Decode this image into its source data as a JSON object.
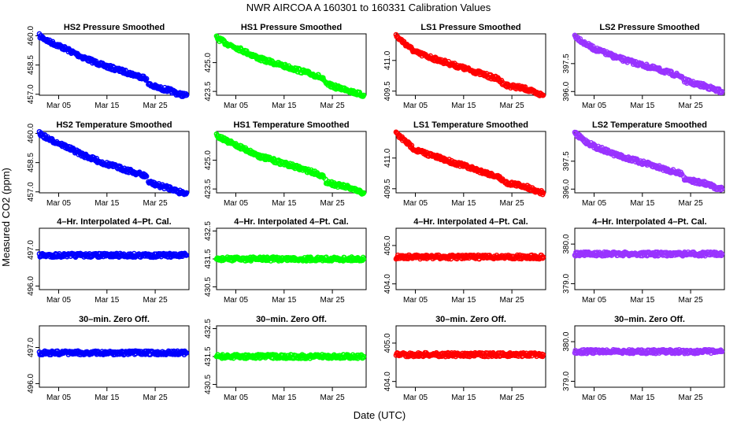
{
  "title": "NWR   AIRCOA A   160301 to 160331   Calibration Values",
  "xlabel": "Date (UTC)",
  "ylabel": "Measured CO2 (ppm)",
  "chart_data": {
    "type": "scatter",
    "rows": 4,
    "cols": 4,
    "x_axis": {
      "ticks": [
        5,
        15,
        25
      ],
      "labels": [
        "Mar 05",
        "Mar 15",
        "Mar 25"
      ],
      "range": [
        1,
        32
      ]
    },
    "panels": [
      {
        "title": "HS2 Pressure Smoothed",
        "color": "#0000ff",
        "ylim": [
          456.95,
          460.1
        ],
        "yticks": [
          457.0,
          458.5,
          460.0
        ],
        "series": [
          {
            "x": [
              1,
              3,
              5,
              10,
              14,
              18,
              22,
              23.2
            ],
            "y": [
              460.0,
              459.7,
              459.5,
              458.9,
              458.5,
              458.2,
              457.9,
              457.8
            ]
          },
          {
            "x": [
              23.6,
              26,
              28,
              30,
              31.5
            ],
            "y": [
              457.5,
              457.3,
              457.2,
              457.0,
              456.95
            ]
          }
        ]
      },
      {
        "title": "HS1 Pressure Smoothed",
        "color": "#00ff00",
        "ylim": [
          423.3,
          426.5
        ],
        "yticks": [
          423.5,
          425.0
        ],
        "series": [
          {
            "x": [
              1,
              3,
              5,
              10,
              14,
              18,
              22,
              23.2
            ],
            "y": [
              426.3,
              426.0,
              425.8,
              425.2,
              424.9,
              424.6,
              424.3,
              424.1
            ]
          },
          {
            "x": [
              23.6,
              26,
              28,
              30,
              31.5
            ],
            "y": [
              423.9,
              423.7,
              423.6,
              423.4,
              423.3
            ]
          }
        ]
      },
      {
        "title": "LS1 Pressure Smoothed",
        "color": "#ff0000",
        "ylim": [
          409.3,
          412.3
        ],
        "yticks": [
          409.5,
          411.0
        ],
        "series": [
          {
            "x": [
              1,
              3,
              5,
              10,
              14,
              18,
              22,
              23.2
            ],
            "y": [
              412.2,
              411.8,
              411.4,
              411.0,
              410.7,
              410.4,
              410.1,
              409.9
            ]
          },
          {
            "x": [
              23.6,
              26,
              28,
              30,
              31.5
            ],
            "y": [
              409.8,
              409.7,
              409.6,
              409.4,
              409.3
            ]
          }
        ]
      },
      {
        "title": "LS2 Pressure Smoothed",
        "color": "#9933ff",
        "ylim": [
          395.8,
          399.1
        ],
        "yticks": [
          396.0,
          397.5
        ],
        "series": [
          {
            "x": [
              1,
              3,
              5,
              10,
              14,
              18,
              22,
              23.2
            ],
            "y": [
              399.0,
              398.6,
              398.3,
              397.8,
              397.5,
              397.2,
              396.9,
              396.8
            ]
          },
          {
            "x": [
              23.6,
              26,
              28,
              30,
              31.5
            ],
            "y": [
              396.6,
              396.4,
              396.3,
              396.1,
              396.0
            ]
          }
        ]
      },
      {
        "title": "HS2 Temperature Smoothed",
        "color": "#0000ff",
        "ylim": [
          456.95,
          460.1
        ],
        "yticks": [
          457.0,
          458.5,
          460.0
        ],
        "series": [
          {
            "x": [
              1,
              3,
              5,
              10,
              14,
              18,
              22,
              23.2
            ],
            "y": [
              460.0,
              459.7,
              459.5,
              458.9,
              458.5,
              458.2,
              457.9,
              457.8
            ]
          },
          {
            "x": [
              23.6,
              26,
              28,
              30,
              31.5
            ],
            "y": [
              457.5,
              457.3,
              457.2,
              457.0,
              456.95
            ]
          }
        ]
      },
      {
        "title": "HS1 Temperature Smoothed",
        "color": "#00ff00",
        "ylim": [
          423.3,
          426.5
        ],
        "yticks": [
          423.5,
          425.0
        ],
        "series": [
          {
            "x": [
              1,
              3,
              5,
              10,
              14,
              18,
              22,
              23.2
            ],
            "y": [
              426.3,
              426.0,
              425.8,
              425.2,
              424.9,
              424.6,
              424.3,
              424.1
            ]
          },
          {
            "x": [
              23.6,
              26,
              28,
              30,
              31.5
            ],
            "y": [
              423.9,
              423.7,
              423.6,
              423.4,
              423.3
            ]
          }
        ]
      },
      {
        "title": "LS1 Temperature Smoothed",
        "color": "#ff0000",
        "ylim": [
          409.3,
          412.3
        ],
        "yticks": [
          409.5,
          411.0
        ],
        "series": [
          {
            "x": [
              1,
              3,
              5,
              10,
              14,
              18,
              22,
              23.2
            ],
            "y": [
              412.2,
              411.8,
              411.4,
              411.0,
              410.7,
              410.4,
              410.1,
              409.9
            ]
          },
          {
            "x": [
              23.6,
              26,
              28,
              30,
              31.5
            ],
            "y": [
              409.8,
              409.7,
              409.6,
              409.4,
              409.3
            ]
          }
        ]
      },
      {
        "title": "LS2 Temperature Smoothed",
        "color": "#9933ff",
        "ylim": [
          395.8,
          399.1
        ],
        "yticks": [
          396.0,
          397.5
        ],
        "series": [
          {
            "x": [
              1,
              3,
              5,
              10,
              14,
              18,
              22,
              23.2
            ],
            "y": [
              399.0,
              398.6,
              398.3,
              397.8,
              397.5,
              397.2,
              396.9,
              396.8
            ]
          },
          {
            "x": [
              23.6,
              26,
              28,
              30,
              31.5
            ],
            "y": [
              396.6,
              396.4,
              396.3,
              396.1,
              396.0
            ]
          }
        ]
      },
      {
        "title": "4–Hr. Interpolated 4–Pt. Cal.",
        "color": "#0000ff",
        "ylim": [
          495.9,
          497.6
        ],
        "yticks": [
          496.0,
          497.0
        ],
        "series": [
          {
            "x": [
              1,
              31.5
            ],
            "y": [
              496.85,
              496.85
            ]
          }
        ]
      },
      {
        "title": "4–Hr. Interpolated 4–Pt. Cal.",
        "color": "#00ff00",
        "ylim": [
          430.4,
          432.6
        ],
        "yticks": [
          430.5,
          431.5,
          432.5
        ],
        "series": [
          {
            "x": [
              1,
              31.5
            ],
            "y": [
              431.5,
              431.5
            ]
          }
        ]
      },
      {
        "title": "4–Hr. Interpolated 4–Pt. Cal.",
        "color": "#ff0000",
        "ylim": [
          403.85,
          405.45
        ],
        "yticks": [
          404.0,
          405.0
        ],
        "series": [
          {
            "x": [
              1,
              31.5
            ],
            "y": [
              404.7,
              404.7
            ]
          }
        ]
      },
      {
        "title": "4–Hr. Interpolated 4–Pt. Cal.",
        "color": "#9933ff",
        "ylim": [
          378.85,
          380.4
        ],
        "yticks": [
          379.0,
          380.0
        ],
        "series": [
          {
            "x": [
              1,
              31.5
            ],
            "y": [
              379.75,
              379.75
            ]
          }
        ]
      },
      {
        "title": "30–min. Zero Off.",
        "color": "#0000ff",
        "ylim": [
          495.9,
          497.6
        ],
        "yticks": [
          496.0,
          497.0
        ],
        "series": [
          {
            "x": [
              1,
              31.5
            ],
            "y": [
              496.85,
              496.85
            ]
          }
        ]
      },
      {
        "title": "30–min. Zero Off.",
        "color": "#00ff00",
        "ylim": [
          430.4,
          432.6
        ],
        "yticks": [
          430.5,
          431.5,
          432.5
        ],
        "series": [
          {
            "x": [
              1,
              31.5
            ],
            "y": [
              431.5,
              431.5
            ]
          }
        ]
      },
      {
        "title": "30–min. Zero Off.",
        "color": "#ff0000",
        "ylim": [
          403.85,
          405.45
        ],
        "yticks": [
          404.0,
          405.0
        ],
        "series": [
          {
            "x": [
              1,
              31.5
            ],
            "y": [
              404.7,
              404.7
            ]
          }
        ]
      },
      {
        "title": "30–min. Zero Off.",
        "color": "#9933ff",
        "ylim": [
          378.85,
          380.4
        ],
        "yticks": [
          379.0,
          380.0
        ],
        "series": [
          {
            "x": [
              1,
              31.5
            ],
            "y": [
              379.75,
              379.75
            ]
          }
        ]
      }
    ]
  }
}
